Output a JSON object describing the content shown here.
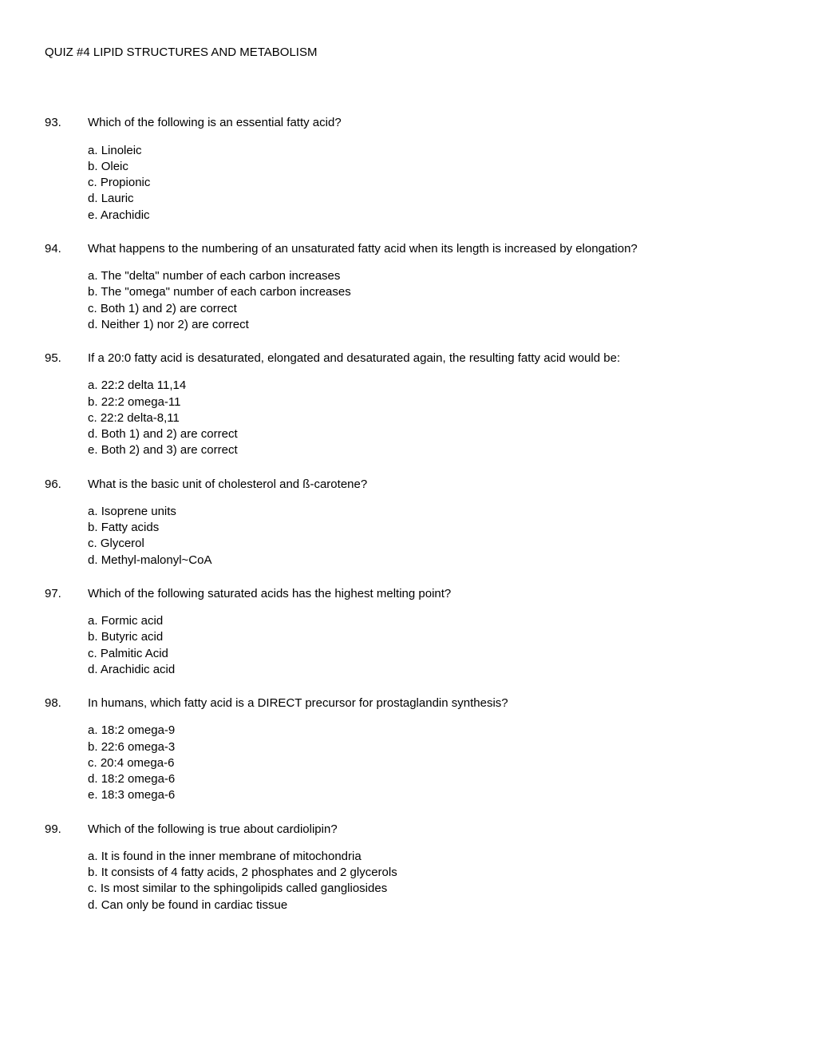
{
  "title": "QUIZ #4   LIPID STRUCTURES AND METABOLISM",
  "questions": [
    {
      "number": "93.",
      "text": "Which of the following is an essential fatty acid?",
      "wrapped": false,
      "options": [
        {
          "letter": "a.",
          "text": "Linoleic"
        },
        {
          "letter": "b.",
          "text": "Oleic"
        },
        {
          "letter": "c.",
          "text": "Propionic"
        },
        {
          "letter": "d.",
          "text": "Lauric"
        },
        {
          "letter": "e.",
          "text": "Arachidic"
        }
      ]
    },
    {
      "number": "94.",
      "text": "What happens to the numbering of an unsaturated fatty acid when its length is increased by elongation?",
      "wrapped": true,
      "options": [
        {
          "letter": "a.",
          "text": "The \"delta\" number of each carbon increases"
        },
        {
          "letter": "b.",
          "text": "The \"omega\" number of each carbon increases"
        },
        {
          "letter": "c.",
          "text": "Both 1) and 2) are correct"
        },
        {
          "letter": "d.",
          "text": "Neither 1) nor 2) are correct"
        }
      ]
    },
    {
      "number": "95.",
      "text": "If a 20:0 fatty acid is desaturated, elongated and desaturated again, the resulting fatty acid would be:",
      "wrapped": false,
      "options": [
        {
          "letter": "a.",
          "text": "22:2 delta 11,14"
        },
        {
          "letter": "b.",
          "text": "22:2 omega-11"
        },
        {
          "letter": "c.",
          "text": "22:2 delta-8,11"
        },
        {
          "letter": "d.",
          "text": "Both 1) and 2) are correct"
        },
        {
          "letter": "e.",
          "text": "Both 2) and 3) are correct"
        }
      ]
    },
    {
      "number": "96.",
      "text": "What is the basic unit of cholesterol and ß-carotene?",
      "wrapped": false,
      "options": [
        {
          "letter": "a.",
          "text": "Isoprene units"
        },
        {
          "letter": "b.",
          "text": "Fatty acids"
        },
        {
          "letter": "c.",
          "text": "Glycerol"
        },
        {
          "letter": "d.",
          "text": "Methyl-malonyl~CoA"
        }
      ]
    },
    {
      "number": "97.",
      "text": "Which of the following saturated acids has the highest melting point?",
      "wrapped": false,
      "options": [
        {
          "letter": "a.",
          "text": "Formic acid"
        },
        {
          "letter": "b.",
          "text": "Butyric acid"
        },
        {
          "letter": "c.",
          "text": "Palmitic Acid"
        },
        {
          "letter": "d.",
          "text": "Arachidic acid"
        }
      ]
    },
    {
      "number": "98.",
      "text": "In humans, which fatty acid is a DIRECT precursor for prostaglandin synthesis?",
      "wrapped": false,
      "options": [
        {
          "letter": "a.",
          "text": "18:2 omega-9"
        },
        {
          "letter": "b.",
          "text": "22:6 omega-3"
        },
        {
          "letter": "c.",
          "text": "20:4 omega-6"
        },
        {
          "letter": "d.",
          "text": "18:2 omega-6"
        },
        {
          "letter": "e.",
          "text": "18:3 omega-6"
        }
      ]
    },
    {
      "number": "99.",
      "text": "Which of the following is true about cardiolipin?",
      "wrapped": false,
      "options": [
        {
          "letter": "a.",
          "text": "It is found in the inner membrane of mitochondria"
        },
        {
          "letter": "b.",
          "text": "It consists of 4 fatty acids, 2 phosphates and 2 glycerols"
        },
        {
          "letter": "c.",
          "text": "Is most similar to the sphingolipids called gangliosides"
        },
        {
          "letter": "d.",
          "text": "Can only be found in cardiac tissue"
        }
      ]
    }
  ]
}
